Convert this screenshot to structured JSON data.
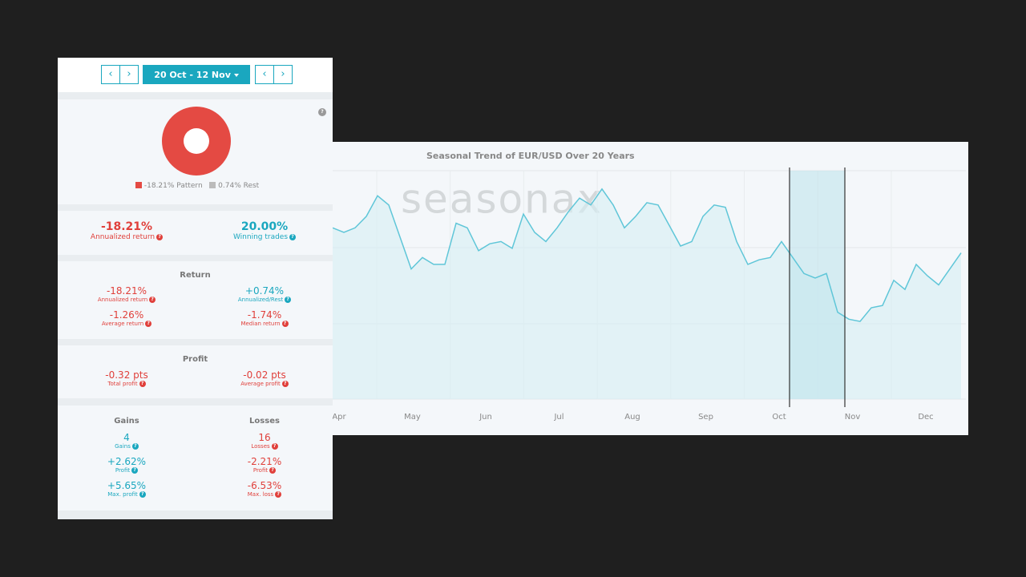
{
  "nav": {
    "prev": "‹",
    "next": "›",
    "range": "20 Oct - 12 Nov"
  },
  "help": "?",
  "donut_legend": [
    "-18.21% Pattern",
    "0.74% Rest"
  ],
  "summary": [
    {
      "value": "-18.21%",
      "label": "Annualized return"
    },
    {
      "value": "20.00%",
      "label": "Winning trades"
    }
  ],
  "return": {
    "title": "Return",
    "items": [
      {
        "value": "-18.21%",
        "label": "Annualized return"
      },
      {
        "value": "+0.74%",
        "label": "Annualized/Rest"
      },
      {
        "value": "-1.26%",
        "label": "Average return"
      },
      {
        "value": "-1.74%",
        "label": "Median return"
      }
    ]
  },
  "profit": {
    "title": "Profit",
    "items": [
      {
        "value": "-0.32 pts",
        "label": "Total profit"
      },
      {
        "value": "-0.02 pts",
        "label": "Average profit"
      }
    ]
  },
  "gains_losses": {
    "columns": [
      "Gains",
      "Losses"
    ],
    "items": [
      {
        "value": "4",
        "label": "Gains"
      },
      {
        "value": "16",
        "label": "Losses"
      },
      {
        "value": "+2.62%",
        "label": "Profit"
      },
      {
        "value": "-2.21%",
        "label": "Profit"
      },
      {
        "value": "+5.65%",
        "label": "Max. profit"
      },
      {
        "value": "-6.53%",
        "label": "Max. loss"
      }
    ]
  },
  "chart_data": {
    "type": "line",
    "title": "Seasonal Trend of EUR/USD Over 20 Years",
    "watermark": "seasonax",
    "month_labels": [
      "Apr",
      "May",
      "Jun",
      "Jul",
      "Aug",
      "Sep",
      "Oct",
      "Nov",
      "Dec"
    ],
    "color": "#5fc6d8",
    "ylim": [
      0,
      100
    ],
    "values": [
      75,
      73,
      75,
      80,
      89,
      85,
      71,
      57,
      62,
      59,
      59,
      77,
      75,
      65,
      68,
      69,
      66,
      81,
      73,
      69,
      75,
      82,
      88,
      85,
      92,
      85,
      75,
      80,
      86,
      85,
      76,
      67,
      69,
      80,
      85,
      84,
      69,
      59,
      61,
      62,
      69,
      62,
      55,
      53,
      55,
      38,
      35,
      34,
      40,
      41,
      52,
      48,
      59,
      54,
      50,
      57,
      64
    ]
  }
}
